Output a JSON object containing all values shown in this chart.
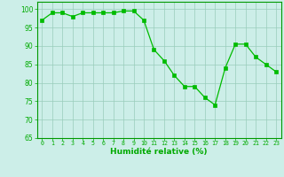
{
  "x": [
    0,
    1,
    2,
    3,
    4,
    5,
    6,
    7,
    8,
    9,
    10,
    11,
    12,
    13,
    14,
    15,
    16,
    17,
    18,
    19,
    20,
    21,
    22,
    23
  ],
  "y": [
    97,
    99,
    99,
    98,
    99,
    99,
    99,
    99,
    99.5,
    99.5,
    97,
    89,
    86,
    82,
    79,
    79,
    76,
    74,
    84,
    90.5,
    90.5,
    87,
    85,
    83
  ],
  "line_color": "#00bb00",
  "marker_color": "#00bb00",
  "bg_color": "#cceee8",
  "grid_color": "#99ccbb",
  "xlabel": "Humidité relative (%)",
  "xlabel_color": "#00aa00",
  "ylim": [
    65,
    102
  ],
  "yticks": [
    65,
    70,
    75,
    80,
    85,
    90,
    95,
    100
  ],
  "xlim": [
    -0.5,
    23.5
  ],
  "xticks": [
    0,
    1,
    2,
    3,
    4,
    5,
    6,
    7,
    8,
    9,
    10,
    11,
    12,
    13,
    14,
    15,
    16,
    17,
    18,
    19,
    20,
    21,
    22,
    23
  ],
  "tick_color": "#00aa00",
  "axis_color": "#009900"
}
